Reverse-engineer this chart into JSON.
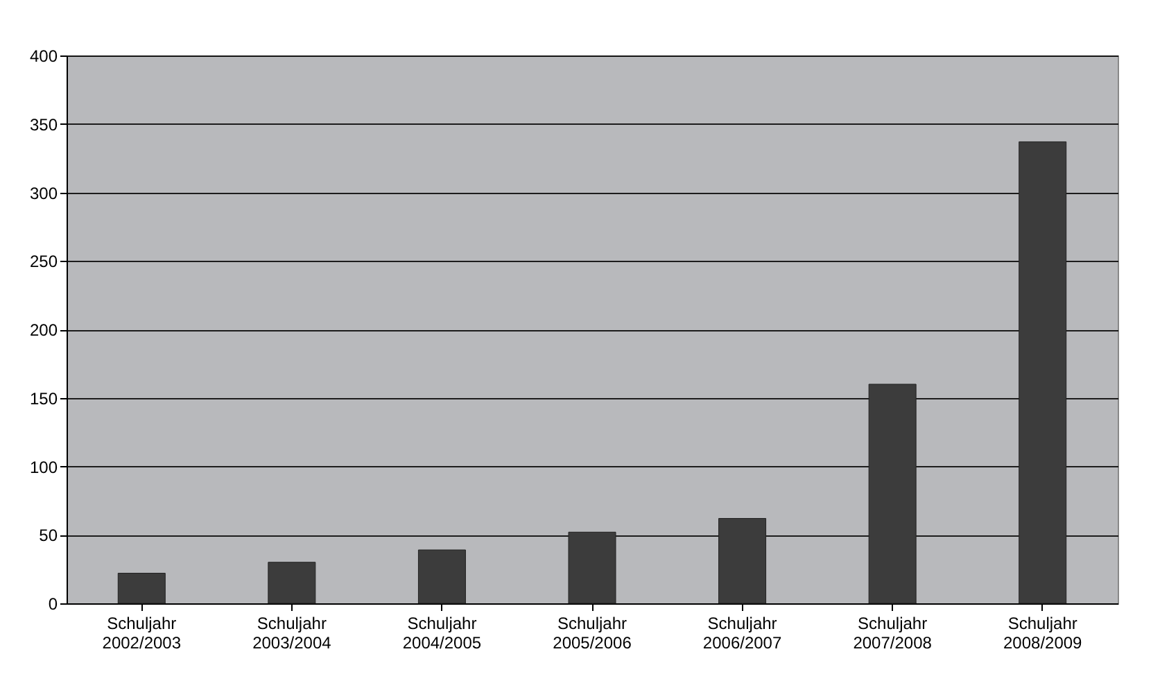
{
  "chart_data": {
    "type": "bar",
    "categories": [
      "Schuljahr 2002/2003",
      "Schuljahr 2003/2004",
      "Schuljahr 2004/2005",
      "Schuljahr 2005/2006",
      "Schuljahr 2006/2007",
      "Schuljahr 2007/2008",
      "Schuljahr 2008/2009"
    ],
    "values": [
      22,
      30,
      39,
      52,
      62,
      160,
      337
    ],
    "color": "#3c3c3c",
    "ylim": [
      0,
      400
    ],
    "yticks": [
      0,
      50,
      100,
      150,
      200,
      250,
      300,
      350,
      400
    ],
    "grid": "y"
  }
}
